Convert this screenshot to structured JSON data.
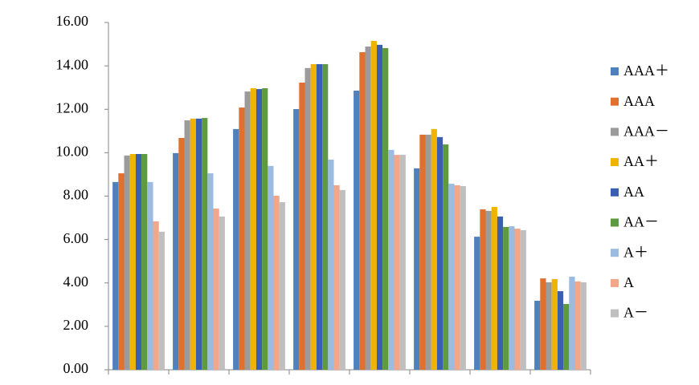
{
  "chart_data": {
    "type": "bar",
    "categories": [
      null,
      null,
      null,
      null,
      null,
      null,
      null,
      null
    ],
    "ylim": [
      0,
      16
    ],
    "yticks": [
      {
        "value": 0,
        "label": "0.00"
      },
      {
        "value": 2,
        "label": "2.00"
      },
      {
        "value": 4,
        "label": "4.00"
      },
      {
        "value": 6,
        "label": "6.00"
      },
      {
        "value": 8,
        "label": "8.00"
      },
      {
        "value": 10,
        "label": "10.00"
      },
      {
        "value": 12,
        "label": "12.00"
      },
      {
        "value": 14,
        "label": "14.00"
      },
      {
        "value": 16,
        "label": "16.00"
      }
    ],
    "grid": false,
    "legend": "right",
    "series": [
      {
        "name": "AAA＋",
        "color": "#4f81bd",
        "values": [
          8.65,
          9.98,
          11.09,
          12.01,
          12.86,
          9.28,
          6.13,
          3.18
        ]
      },
      {
        "name": "AAA",
        "color": "#e0702d",
        "values": [
          9.05,
          10.68,
          12.08,
          13.23,
          14.63,
          10.83,
          7.39,
          4.21
        ]
      },
      {
        "name": "AAA－",
        "color": "#9b9b9b",
        "values": [
          9.87,
          11.49,
          12.82,
          13.9,
          14.89,
          10.83,
          7.32,
          4.03
        ]
      },
      {
        "name": "AA＋",
        "color": "#f0b400",
        "values": [
          9.94,
          11.57,
          12.97,
          14.08,
          15.15,
          11.09,
          7.5,
          4.18
        ]
      },
      {
        "name": "AA",
        "color": "#3b5fb0",
        "values": [
          9.94,
          11.57,
          12.93,
          14.08,
          14.97,
          10.72,
          7.06,
          3.62
        ]
      },
      {
        "name": "AA－",
        "color": "#5e9a3e",
        "values": [
          9.94,
          11.6,
          12.97,
          14.08,
          14.82,
          10.38,
          6.58,
          3.03
        ]
      },
      {
        "name": "A＋",
        "color": "#9bbbe0",
        "values": [
          8.65,
          9.05,
          9.39,
          9.68,
          10.13,
          8.57,
          6.61,
          4.29
        ]
      },
      {
        "name": "A",
        "color": "#f2a68a",
        "values": [
          6.84,
          7.43,
          8.02,
          8.5,
          9.9,
          8.5,
          6.5,
          4.07
        ]
      },
      {
        "name": "A－",
        "color": "#bfbfbf",
        "values": [
          6.36,
          7.06,
          7.72,
          8.28,
          9.9,
          8.46,
          6.43,
          4.03
        ]
      }
    ]
  }
}
